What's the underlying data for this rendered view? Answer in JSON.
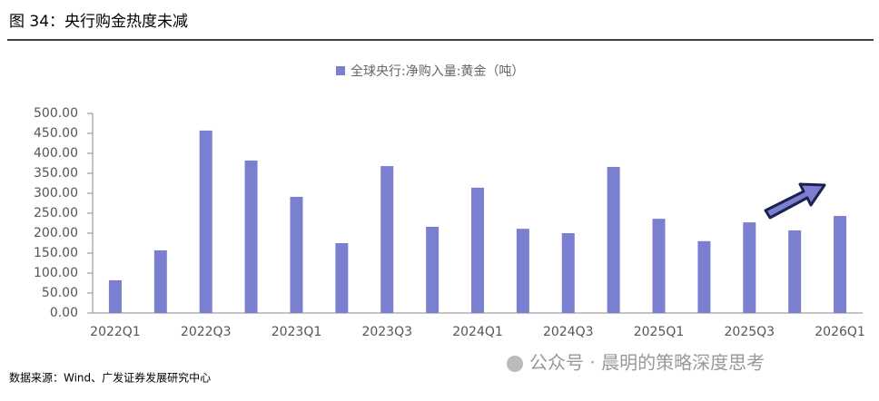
{
  "header": {
    "title": "图 34：央行购金热度未减"
  },
  "chart_data": {
    "type": "bar",
    "legend": "全球央行:净购入量:黄金（吨）",
    "categories": [
      "2022Q1",
      null,
      "2022Q3",
      null,
      "2023Q1",
      null,
      "2023Q3",
      null,
      "2024Q1",
      null,
      "2024Q3",
      null,
      "2025Q1",
      null,
      "2025Q3",
      null,
      "2026Q1"
    ],
    "values": [
      82,
      157,
      457,
      382,
      291,
      175,
      368,
      216,
      314,
      211,
      200,
      366,
      236,
      180,
      227,
      207,
      243
    ],
    "color": "#7b7fcf",
    "ylim": [
      0,
      500
    ],
    "yticks": [
      {
        "value": 0,
        "label": "0.00"
      },
      {
        "value": 50,
        "label": "50.00"
      },
      {
        "value": 100,
        "label": "100.00"
      },
      {
        "value": 150,
        "label": "150.00"
      },
      {
        "value": 200,
        "label": "200.00"
      },
      {
        "value": 250,
        "label": "250.00"
      },
      {
        "value": 300,
        "label": "300.00"
      },
      {
        "value": 350,
        "label": "350.00"
      },
      {
        "value": 400,
        "label": "400.00"
      },
      {
        "value": 450,
        "label": "450.00"
      },
      {
        "value": 500,
        "label": "500.00"
      }
    ]
  },
  "footer": {
    "source": "数据来源：Wind、广发证券发展研究中心",
    "watermark": "公众号 · 晨明的策略深度思考"
  }
}
